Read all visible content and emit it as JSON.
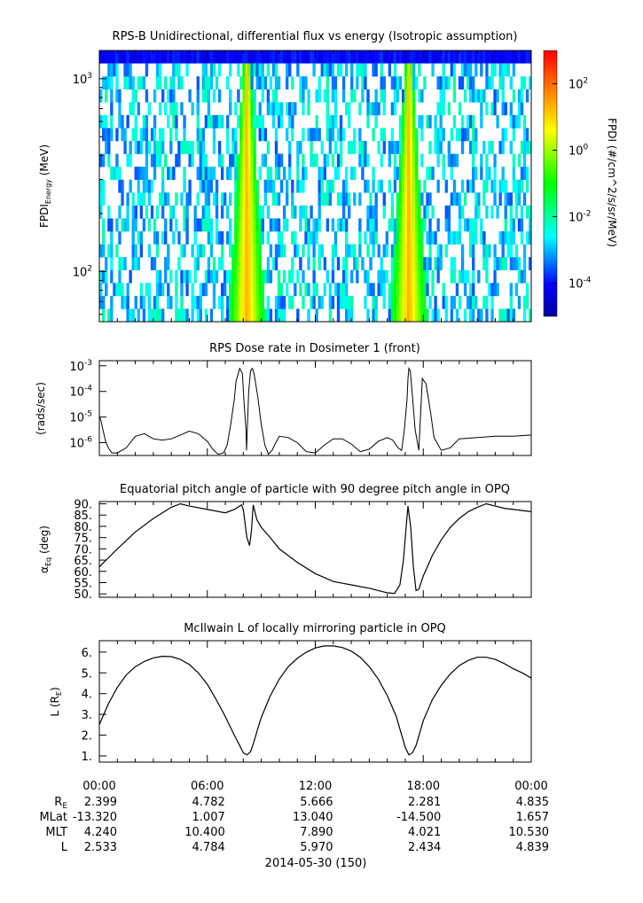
{
  "chart_data": [
    {
      "type": "heatmap",
      "title": "RPS-B  Unidirectional, differential flux vs energy (Isotropic assumption)",
      "ylabel_main": "FPDI",
      "ylabel_sub": "Energy",
      "ylabel_unit": "(MeV)",
      "yscale": "log",
      "ylim": [
        55,
        1400
      ],
      "ytick_exps": [
        "3",
        "2"
      ],
      "ytick_values": [
        1000,
        100
      ],
      "xlim_hours": [
        0,
        24
      ],
      "colorbar": {
        "label": "FPDI (#/cm^2/s/sr/MeV)",
        "scale": "log",
        "range_exp": [
          -5,
          3
        ],
        "tick_exps": [
          "2",
          "0",
          "-2",
          "-4"
        ],
        "tick_values": [
          2,
          0,
          -2,
          -4
        ]
      },
      "enhancement_centers_hours": [
        8.2,
        17.2
      ],
      "colors": {
        "background": "#000000"
      }
    },
    {
      "type": "line",
      "title": "RPS  Dose rate in Dosimeter 1 (front)",
      "ylabel": "(rads/sec)",
      "yscale": "log",
      "ylim_exp": [
        -6.5,
        -2.8
      ],
      "ytick_exps": [
        "-3",
        "-4",
        "-5",
        "-6"
      ],
      "ytick_values": [
        -3,
        -4,
        -5,
        -6
      ],
      "x": [
        0,
        0.08,
        0.2,
        0.35,
        0.5,
        0.7,
        1,
        1.5,
        2,
        2.5,
        3,
        3.5,
        4,
        4.5,
        5,
        5.5,
        6,
        6.3,
        6.6,
        6.9,
        7.1,
        7.3,
        7.5,
        7.6,
        7.8,
        7.95,
        8.05,
        8.15,
        8.18,
        8.22,
        8.3,
        8.4,
        8.5,
        8.6,
        8.8,
        9,
        9.2,
        9.4,
        9.6,
        9.8,
        10,
        10.5,
        11,
        11.5,
        12,
        12.5,
        13,
        13.5,
        14,
        14.5,
        15,
        15.5,
        16,
        16.3,
        16.6,
        16.8,
        16.95,
        17.1,
        17.15,
        17.2,
        17.28,
        17.4,
        17.55,
        17.75,
        17.95,
        18.15,
        18.4,
        18.6,
        19,
        19.5,
        20,
        21,
        22,
        23,
        24
      ],
      "y": [
        -5.0,
        -5.1,
        -5.5,
        -5.95,
        -6.2,
        -6.4,
        -6.4,
        -6.2,
        -5.75,
        -5.65,
        -5.85,
        -5.9,
        -5.85,
        -5.7,
        -5.55,
        -5.65,
        -5.95,
        -6.25,
        -6.45,
        -6.4,
        -6.1,
        -5.3,
        -4.3,
        -3.6,
        -3.1,
        -3.3,
        -4.5,
        -5.5,
        -6.3,
        -5.5,
        -4.0,
        -3.2,
        -3.1,
        -3.3,
        -4.2,
        -5.3,
        -6.1,
        -6.45,
        -6.3,
        -6.0,
        -5.75,
        -5.8,
        -6.0,
        -6.35,
        -6.4,
        -6.1,
        -5.85,
        -5.85,
        -6.05,
        -6.35,
        -6.25,
        -5.95,
        -5.8,
        -5.9,
        -6.2,
        -6.3,
        -5.5,
        -4.3,
        -3.5,
        -3.1,
        -3.2,
        -4.2,
        -5.5,
        -6.3,
        -3.5,
        -3.7,
        -4.8,
        -5.8,
        -6.3,
        -6.2,
        -5.85,
        -5.8,
        -5.75,
        -5.75,
        -5.7
      ]
    },
    {
      "type": "line",
      "title": "Equatorial pitch angle of particle with 90 degree pitch angle in OPQ",
      "ylabel_main": "α",
      "ylabel_sub": "Eq",
      "ylabel_unit": "(deg)",
      "ylim": [
        48.5,
        91
      ],
      "yticks": [
        "90.",
        "85.",
        "80.",
        "75.",
        "70.",
        "65.",
        "60.",
        "55.",
        "50."
      ],
      "ytick_values": [
        90,
        85,
        80,
        75,
        70,
        65,
        60,
        55,
        50
      ],
      "x": [
        0,
        1,
        2,
        3,
        4,
        4.5,
        5,
        6,
        7,
        7.5,
        7.9,
        8.0,
        8.2,
        8.35,
        8.45,
        8.55,
        8.75,
        9,
        9.5,
        10,
        10.5,
        11,
        12,
        13,
        14,
        15,
        15.5,
        16,
        16.4,
        16.7,
        16.9,
        17.05,
        17.15,
        17.3,
        17.45,
        17.6,
        17.75,
        18,
        18.5,
        19,
        19.5,
        20,
        20.5,
        21,
        21.5,
        22,
        22.5,
        23,
        24
      ],
      "y": [
        62,
        70,
        77.5,
        83.5,
        88.5,
        90,
        89,
        87.5,
        86,
        87.5,
        89.5,
        87.5,
        75,
        71.5,
        78,
        89.5,
        83,
        79.5,
        75,
        70,
        67,
        64,
        59,
        55.5,
        54,
        52.5,
        51.5,
        50.5,
        50.2,
        54,
        65,
        80,
        89,
        80,
        62,
        51.5,
        52,
        58,
        67,
        74,
        79.5,
        83.5,
        86.5,
        88.5,
        90,
        89,
        88,
        87.5,
        86.5
      ]
    },
    {
      "type": "line",
      "title": "McIlwain L of locally mirroring particle in OPQ",
      "ylabel_main": "L (R",
      "ylabel_sub": "E",
      "ylabel_tail": ")",
      "ylim": [
        0.7,
        6.55
      ],
      "yticks": [
        "6.",
        "5.",
        "4.",
        "3.",
        "2.",
        "1."
      ],
      "ytick_values": [
        6,
        5,
        4,
        3,
        2,
        1
      ],
      "x": [
        0,
        0.5,
        1,
        1.5,
        2,
        2.5,
        3,
        3.5,
        4,
        4.5,
        5,
        5.5,
        6,
        6.5,
        7,
        7.5,
        7.8,
        8.0,
        8.2,
        8.4,
        8.6,
        8.8,
        9.0,
        9.5,
        10,
        10.5,
        11,
        11.5,
        12,
        12.5,
        13,
        13.5,
        14,
        14.5,
        15,
        15.5,
        16,
        16.5,
        16.8,
        17.0,
        17.2,
        17.4,
        17.6,
        17.8,
        18,
        18.5,
        19,
        19.5,
        20,
        20.5,
        21,
        21.5,
        22,
        22.5,
        23,
        23.5,
        24
      ],
      "y": [
        2.5,
        3.5,
        4.3,
        4.9,
        5.3,
        5.55,
        5.72,
        5.8,
        5.78,
        5.65,
        5.4,
        5.0,
        4.45,
        3.7,
        2.9,
        2.0,
        1.5,
        1.15,
        1.05,
        1.2,
        1.7,
        2.3,
        2.85,
        3.9,
        4.7,
        5.3,
        5.7,
        6.0,
        6.2,
        6.3,
        6.3,
        6.22,
        6.05,
        5.75,
        5.3,
        4.7,
        3.9,
        2.9,
        2.0,
        1.4,
        1.05,
        1.15,
        1.5,
        2.1,
        2.7,
        3.7,
        4.4,
        4.95,
        5.35,
        5.6,
        5.75,
        5.75,
        5.65,
        5.45,
        5.2,
        5.0,
        4.75
      ]
    }
  ],
  "x_axis": {
    "ticks": [
      "00:00",
      "06:00",
      "12:00",
      "18:00",
      "00:00"
    ],
    "tick_hours": [
      0,
      6,
      12,
      18,
      24
    ],
    "label": "2014-05-30 (150)",
    "ephemeris": [
      {
        "label": "R",
        "label_sub": "E",
        "values": [
          "2.399",
          "4.782",
          "5.666",
          "2.281",
          "4.835"
        ]
      },
      {
        "label": "MLat",
        "label_sub": "",
        "values": [
          "-13.320",
          "1.007",
          "13.040",
          "-14.500",
          "1.657"
        ]
      },
      {
        "label": "MLT",
        "label_sub": "",
        "values": [
          "4.240",
          "10.400",
          "7.890",
          "4.021",
          "10.530"
        ]
      },
      {
        "label": "L",
        "label_sub": "",
        "values": [
          "2.533",
          "4.784",
          "5.970",
          "2.434",
          "4.839"
        ]
      }
    ]
  }
}
